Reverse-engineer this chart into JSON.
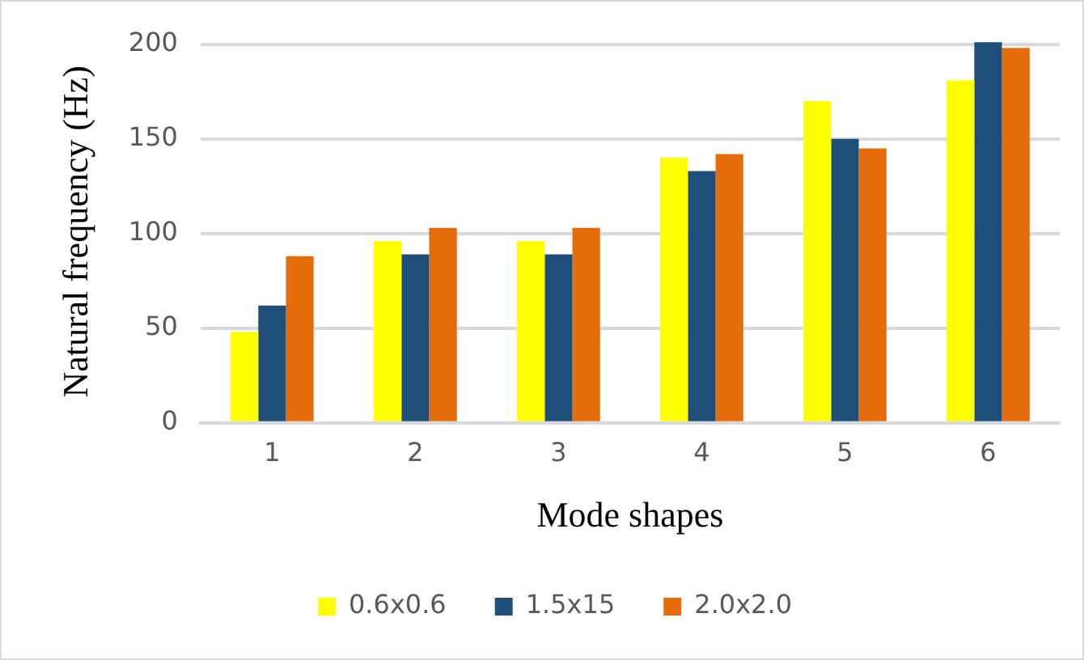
{
  "chart_data": {
    "type": "bar",
    "xlabel": "Mode shapes",
    "ylabel": "Natural frequency (Hz)",
    "categories": [
      "1",
      "2",
      "3",
      "4",
      "5",
      "6"
    ],
    "series": [
      {
        "name": "0.6x0.6",
        "color": "#ffff00",
        "values": [
          48,
          96,
          96,
          140,
          170,
          181
        ]
      },
      {
        "name": "1.5x15",
        "color": "#1f4e79",
        "values": [
          62,
          89,
          89,
          133,
          150,
          201
        ]
      },
      {
        "name": "2.0x2.0",
        "color": "#e46c0a",
        "values": [
          88,
          103,
          103,
          142,
          145,
          198
        ]
      }
    ],
    "ylim": [
      0,
      202
    ],
    "yticks": [
      0,
      50,
      100,
      150,
      200
    ],
    "grid": "y",
    "legend": "bottom"
  }
}
